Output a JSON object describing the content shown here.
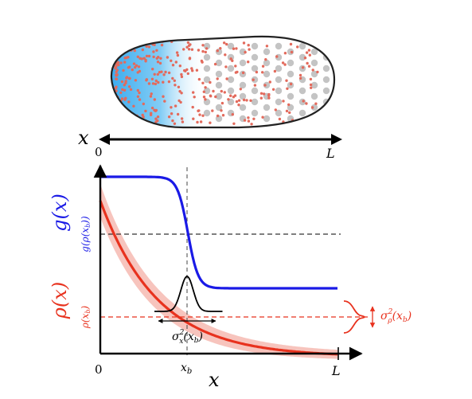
{
  "axis_top": {
    "var": "x",
    "start": "0",
    "end": "L"
  },
  "axis_bottom": {
    "origin": "0",
    "xb": "x",
    "xb_sub": "b",
    "end": "L",
    "var": "x"
  },
  "y_labels": {
    "g_main": "g(x)",
    "rho_main": "ρ(x)",
    "g_tick": "g(ρ(x",
    "g_tick_sub": "b",
    "g_tick_close": "))",
    "rho_tick": "ρ(x",
    "rho_tick_sub": "b",
    "rho_tick_close": ")"
  },
  "annotations": {
    "sigma_x": {
      "base": "σ",
      "sup": "2",
      "sub": "x",
      "arg": "(x",
      "arg_sub": "b",
      "close": ")"
    },
    "sigma_rho": {
      "base": "σ",
      "sup": "2",
      "sub": "ρ",
      "arg": "(x",
      "arg_sub": "b",
      "close": ")"
    }
  },
  "colors": {
    "blue_curve": "#1a1ae6",
    "red_curve": "#e8321e",
    "red_band": "#f5b5ad",
    "gradient_blue": "#2fa6ee",
    "red_dot": "#e36a5c",
    "grey_dot": "#c4c4c4",
    "axis": "#000000"
  }
}
